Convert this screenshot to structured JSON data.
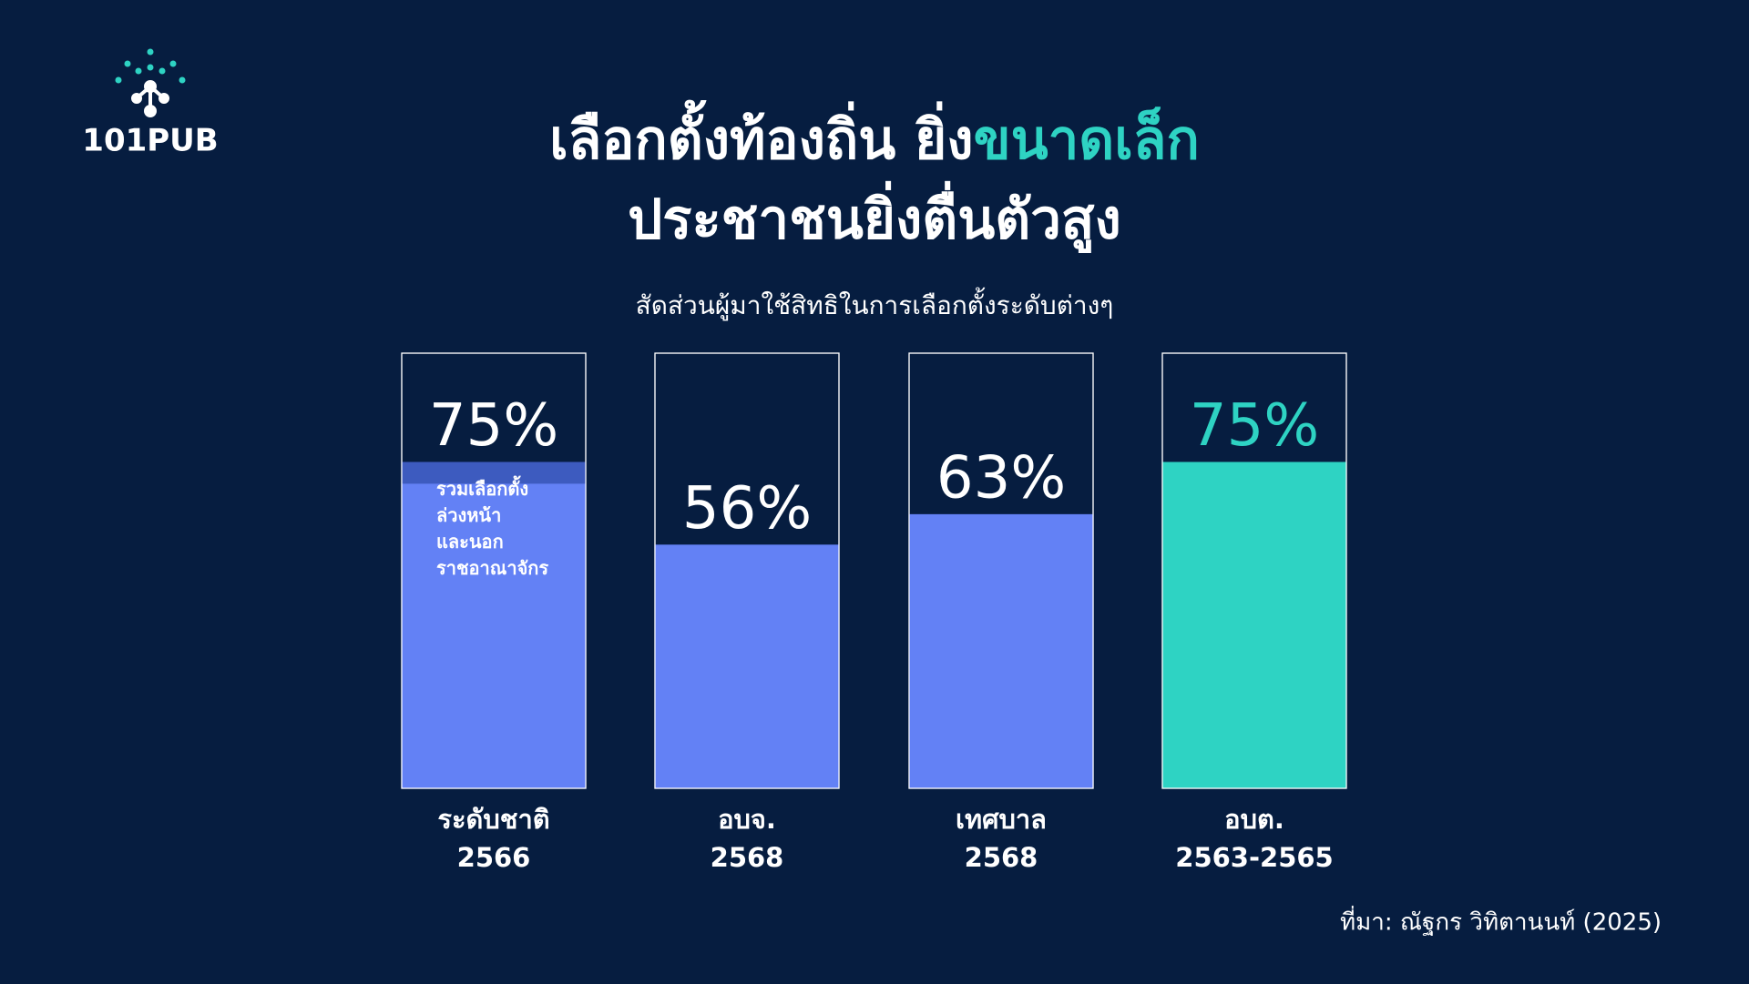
{
  "logo": "101PUB",
  "chart_data": {
    "type": "bar",
    "title": {
      "line1": "เลือกตั้งท้องถิ่น ยิ่ง",
      "highlight": "ขนาดเล็ก",
      "line2": "ประชาชนยิ่งตื่นตัวสูง"
    },
    "subtitle": "สัดส่วนผู้มาใช้สิทธิในการเลือกตั้งระดับต่างๆ",
    "categories": [
      "ระดับชาติ\n2566",
      "อบจ.\n2568",
      "เทศบาล\n2568",
      "อบต.\n2563-2565"
    ],
    "values": [
      75,
      56,
      63,
      75
    ],
    "value_labels": [
      "75%",
      "56%",
      "63%",
      "75%"
    ],
    "colors": [
      "#6381f5",
      "#6381f5",
      "#6381f5",
      "#2ed3c3"
    ],
    "label_colors": [
      "#ffffff",
      "#ffffff",
      "#ffffff",
      "#2ed3c3"
    ],
    "ylim": [
      0,
      100
    ],
    "annotation": {
      "category": 0,
      "value": 5,
      "color": "#3d5bbf",
      "text": "รวมเลือกตั้ง\nล่วงหน้า\nและนอก\nราชอาณาจักร"
    },
    "source": "ที่มา: ณัฐกร วิทิตานนท์ (2025)"
  }
}
